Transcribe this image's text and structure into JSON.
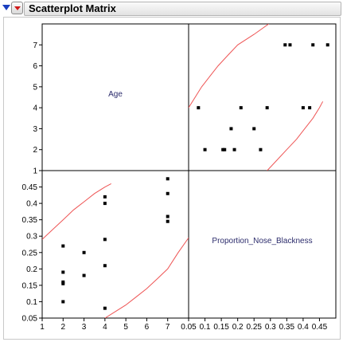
{
  "window": {
    "title": "Scatterplot Matrix"
  },
  "colors": {
    "ellipse": "#ee5555",
    "points": "#000000",
    "disclosure": "#1a3fbf",
    "hotspot_arrow": "#d01a1a",
    "label_text": "#2b2b6b"
  },
  "icons": [
    "disclosure-triangle-icon",
    "red-triangle-menu-icon"
  ],
  "chart_data": {
    "type": "scatter",
    "title": "Scatterplot Matrix",
    "variables": [
      "Age",
      "Proportion_Nose_Blackness"
    ],
    "axes": {
      "Age": {
        "range": [
          1,
          8
        ],
        "ticks": [
          "1",
          "2",
          "3",
          "4",
          "5",
          "6",
          "7"
        ]
      },
      "Proportion_Nose_Blackness": {
        "range": [
          0.05,
          0.5
        ],
        "ticks": [
          "0.05",
          "0.1",
          "0.15",
          "0.2",
          "0.25",
          "0.3",
          "0.35",
          "0.4",
          "0.45"
        ]
      }
    },
    "points": [
      {
        "x": 2,
        "y": 0.27
      },
      {
        "x": 2,
        "y": 0.19
      },
      {
        "x": 2,
        "y": 0.16
      },
      {
        "x": 2,
        "y": 0.155
      },
      {
        "x": 2,
        "y": 0.1
      },
      {
        "x": 3,
        "y": 0.25
      },
      {
        "x": 3,
        "y": 0.18
      },
      {
        "x": 4,
        "y": 0.42
      },
      {
        "x": 4,
        "y": 0.4
      },
      {
        "x": 4,
        "y": 0.29
      },
      {
        "x": 4,
        "y": 0.21
      },
      {
        "x": 4,
        "y": 0.08
      },
      {
        "x": 7,
        "y": 0.475
      },
      {
        "x": 7,
        "y": 0.43
      },
      {
        "x": 7,
        "y": 0.36
      },
      {
        "x": 7,
        "y": 0.345
      }
    ],
    "density_ellipse": {
      "shown": true,
      "curves": [
        {
          "x": [
            1,
            1.5,
            2,
            2.5,
            3,
            3.5,
            4,
            4.3
          ],
          "y": [
            0.29,
            0.32,
            0.35,
            0.38,
            0.405,
            0.43,
            0.45,
            0.46
          ]
        },
        {
          "x": [
            4,
            4.5,
            5,
            5.5,
            6,
            6.5,
            7,
            7.5,
            8
          ],
          "y": [
            0.05,
            0.07,
            0.09,
            0.115,
            0.14,
            0.17,
            0.2,
            0.25,
            0.295
          ]
        }
      ]
    },
    "grid": false
  }
}
